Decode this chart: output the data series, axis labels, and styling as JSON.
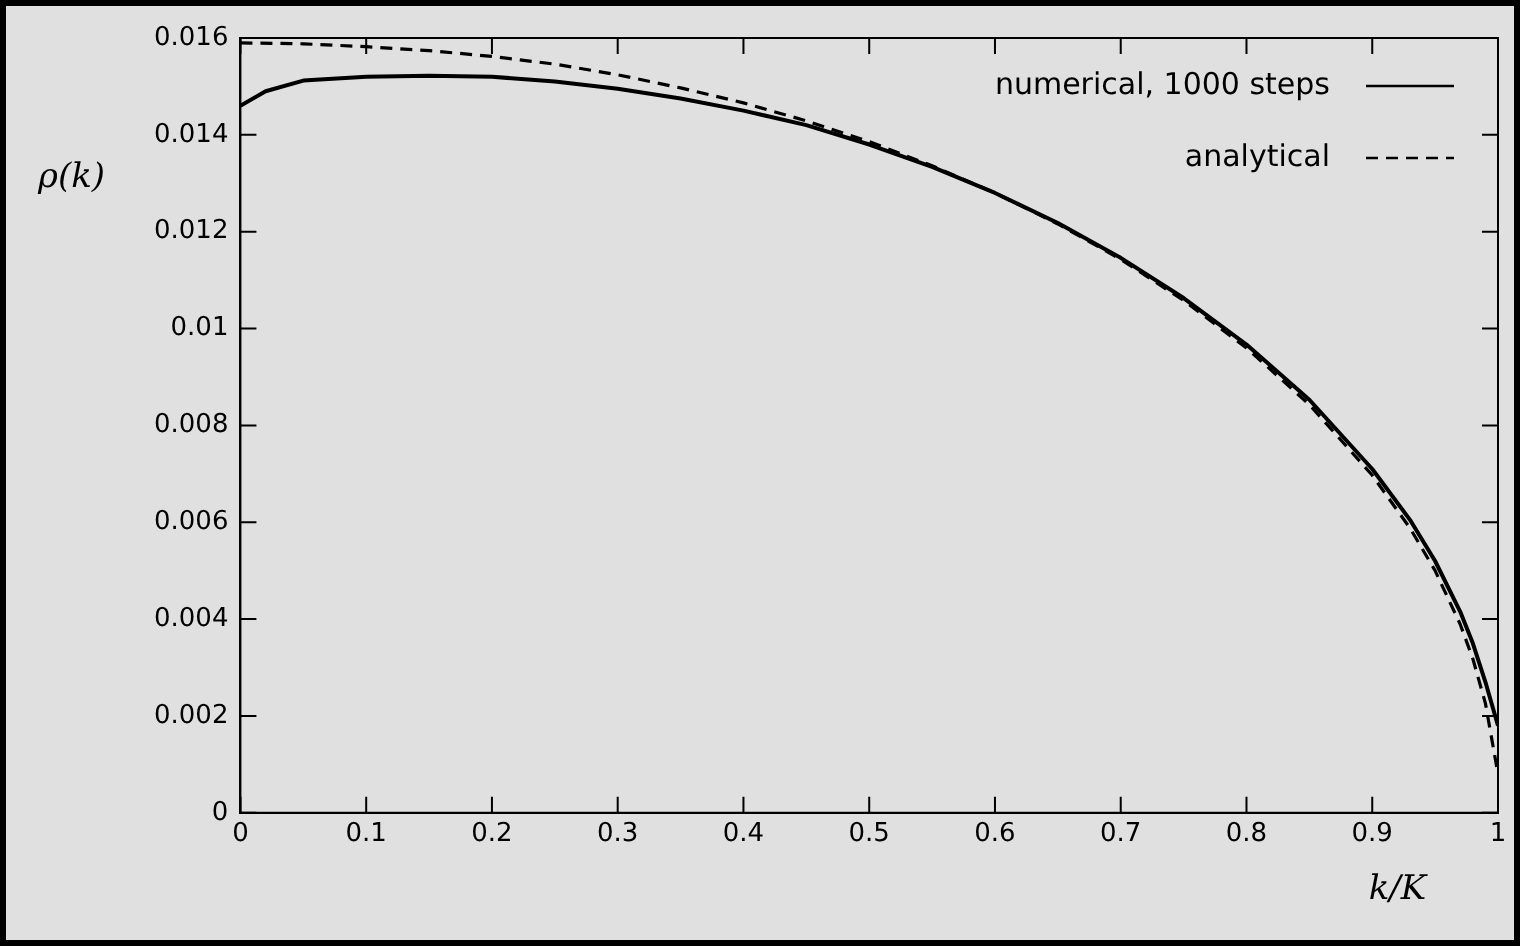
{
  "chart_data": {
    "type": "line",
    "xlabel": "k/K",
    "ylabel": "ρ(k)",
    "xlim": [
      0,
      1
    ],
    "xticks": [
      0,
      0.1,
      0.2,
      0.3,
      0.4,
      0.5,
      0.6,
      0.7,
      0.8,
      0.9,
      1
    ],
    "ylim": [
      0,
      0.016
    ],
    "yticks": [
      0,
      0.002,
      0.004,
      0.006,
      0.008,
      0.01,
      0.012,
      0.014,
      0.016
    ],
    "grid": false,
    "legend": "top right",
    "marker": "none",
    "series": [
      {
        "name": "numerical, 1000 steps",
        "color": "#000000",
        "line_style": "solid",
        "x": [
          0,
          0.02,
          0.05,
          0.1,
          0.15,
          0.2,
          0.25,
          0.3,
          0.35,
          0.4,
          0.45,
          0.5,
          0.55,
          0.6,
          0.65,
          0.7,
          0.75,
          0.8,
          0.85,
          0.9,
          0.93,
          0.95,
          0.97,
          0.98,
          0.99,
          1
        ],
        "values": [
          0.0146,
          0.0149,
          0.01512,
          0.0152,
          0.01522,
          0.0152,
          0.0151,
          0.01495,
          0.01475,
          0.0145,
          0.0142,
          0.0138,
          0.01334,
          0.0128,
          0.01218,
          0.01146,
          0.01063,
          0.00967,
          0.00853,
          0.0071,
          0.00605,
          0.0052,
          0.00415,
          0.0035,
          0.0027,
          0.0018
        ]
      },
      {
        "name": "analytical",
        "color": "#000000",
        "line_style": "dashed",
        "x": [
          0,
          0.05,
          0.1,
          0.15,
          0.2,
          0.25,
          0.3,
          0.35,
          0.4,
          0.45,
          0.5,
          0.55,
          0.6,
          0.65,
          0.7,
          0.75,
          0.8,
          0.85,
          0.9,
          0.93,
          0.95,
          0.97,
          0.98,
          0.99,
          1
        ],
        "values": [
          0.0159,
          0.01588,
          0.01582,
          0.01574,
          0.01562,
          0.01546,
          0.01524,
          0.01497,
          0.01466,
          0.01429,
          0.01386,
          0.01336,
          0.0128,
          0.01216,
          0.01143,
          0.01058,
          0.0096,
          0.00843,
          0.00697,
          0.00588,
          0.005,
          0.00389,
          0.00318,
          0.00226,
          0.0008
        ]
      }
    ]
  }
}
